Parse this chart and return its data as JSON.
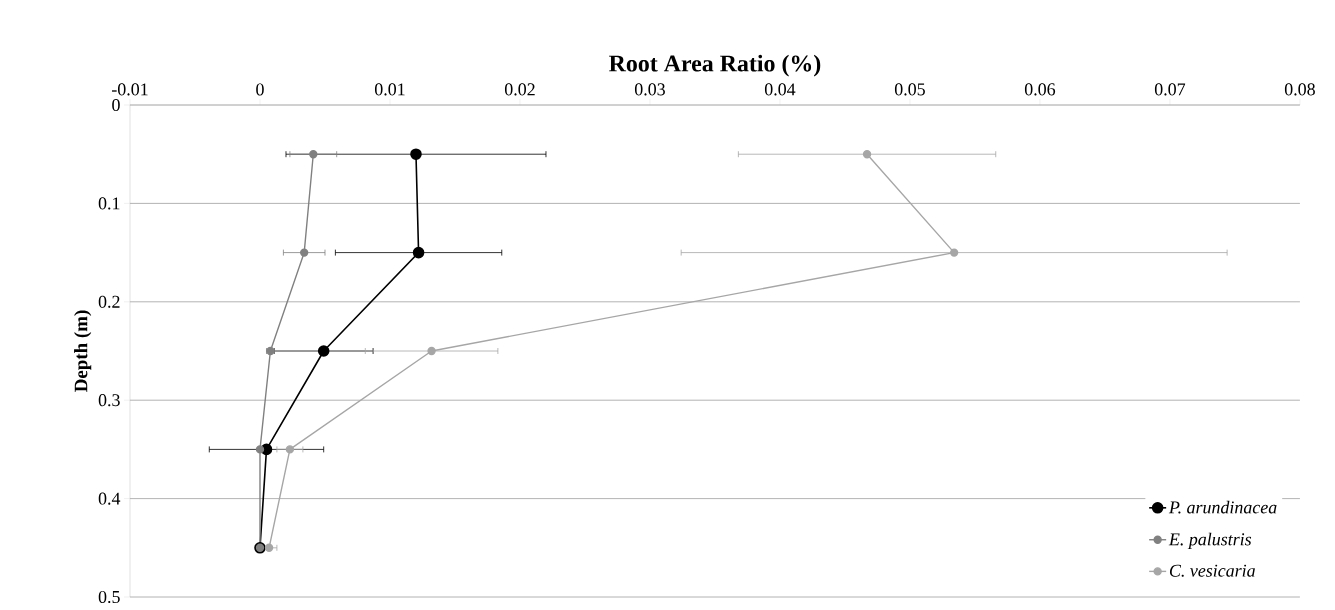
{
  "chart_data": {
    "type": "line",
    "xlabel": "Root Area Ratio (%)",
    "ylabel": "Depth (m)",
    "xlim": [
      -0.01,
      0.08
    ],
    "xticks": [
      -0.01,
      0,
      0.01,
      0.02,
      0.03,
      0.04,
      0.05,
      0.06,
      0.07,
      0.08
    ],
    "ylim": [
      0.5,
      0
    ],
    "yticks": [
      0,
      0.1,
      0.2,
      0.3,
      0.4,
      0.5
    ],
    "grid": "y",
    "legend": "bottom right",
    "marker": "circle",
    "line_style": "solid",
    "series": [
      {
        "name": "P. arundinacea",
        "color": "#000000",
        "x": [
          0.012,
          0.0122,
          0.0049,
          0.0005,
          0.0
        ],
        "values": [
          0.05,
          0.15,
          0.25,
          0.35,
          0.45
        ],
        "xerrors": [
          0.01,
          0.0064,
          0.0038,
          0.0044,
          null
        ]
      },
      {
        "name": "E. palustris",
        "color": "#808080",
        "x": [
          0.0041,
          0.0034,
          0.0008,
          0.0,
          0.0
        ],
        "values": [
          0.05,
          0.15,
          0.25,
          0.35,
          0.45
        ],
        "xerrors": [
          0.0018,
          0.0016,
          0.0003,
          null,
          null
        ]
      },
      {
        "name": "C. vesicaria",
        "color": "#a6a6a6",
        "x": [
          0.0467,
          0.0534,
          0.0132,
          0.0023,
          0.0007
        ],
        "values": [
          0.05,
          0.15,
          0.25,
          0.35,
          0.45
        ],
        "xerrors": [
          0.0099,
          0.021,
          0.0051,
          0.001,
          0.0006
        ]
      }
    ]
  }
}
